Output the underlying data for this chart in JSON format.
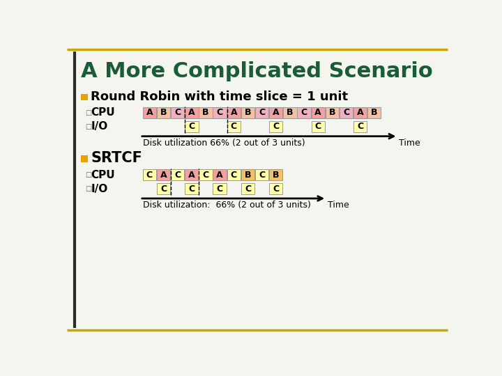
{
  "title": "A More Complicated Scenario",
  "title_color": "#1a5c3a",
  "bg_color": "#f5f5f0",
  "border_color_gold": "#c8a800",
  "border_color_dark": "#2a2a2a",
  "section1_label": "Round Robin with time slice = 1 unit",
  "section2_label": "SRTCF",
  "bullet_color": "#e8a000",
  "rr_cpu": [
    "A",
    "B",
    "C",
    "A",
    "B",
    "C",
    "A",
    "B",
    "C",
    "A",
    "B",
    "C",
    "A",
    "B",
    "C",
    "A",
    "B"
  ],
  "rr_cpu_colors": [
    "#f4a0a0",
    "#f4c0a0",
    "#f0b0c0",
    "#f4a0a0",
    "#f4c0a0",
    "#f0b0c0",
    "#f4a0a0",
    "#f4c0a0",
    "#f0b0c0",
    "#f4a0a0",
    "#f4c0a0",
    "#f0b0c0",
    "#f4a0a0",
    "#f4c0a0",
    "#f0b0c0",
    "#f4a0a0",
    "#f4c0a0"
  ],
  "rr_io_slots": [
    null,
    null,
    null,
    "C",
    null,
    null,
    "C",
    null,
    null,
    "C",
    null,
    null,
    "C",
    null,
    null,
    "C",
    null
  ],
  "rr_io_color": "#ffffaa",
  "rr_dashed_lines": [
    3,
    6
  ],
  "rr_disk_util": "Disk utilization 66% (2 out of 3 units)",
  "srtcf_cpu": [
    "C",
    "A",
    "C",
    "A",
    "C",
    "A",
    "C",
    "B",
    "C",
    "B"
  ],
  "srtcf_cpu_colors": [
    "#ffffaa",
    "#f4a0a0",
    "#ffffaa",
    "#f4a0a0",
    "#ffffaa",
    "#f4a0a0",
    "#ffffaa",
    "#f4c060",
    "#ffffaa",
    "#f4c060"
  ],
  "srtcf_io_slots": [
    null,
    "C",
    null,
    "C",
    null,
    "C",
    null,
    "C",
    null,
    "C"
  ],
  "srtcf_io_color": "#ffffaa",
  "srtcf_dashed_lines": [
    2,
    4
  ],
  "srtcf_disk_util": "Disk utilization:  66% (2 out of 3 units)"
}
